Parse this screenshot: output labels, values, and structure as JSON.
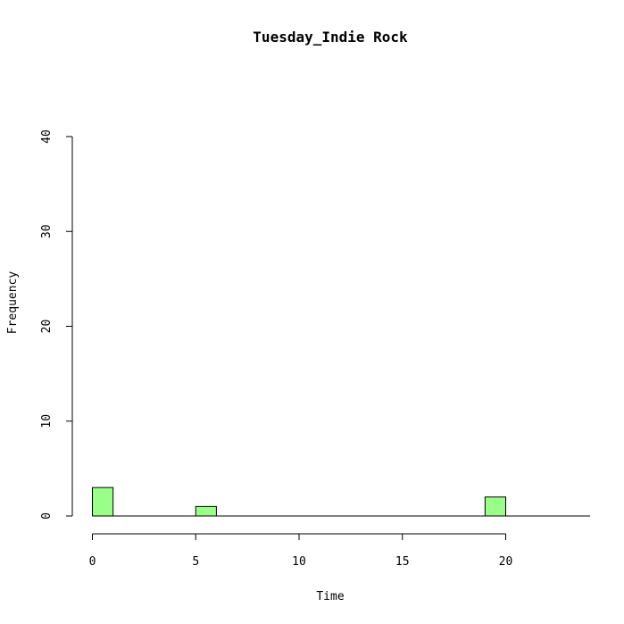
{
  "chart_data": {
    "type": "bar",
    "title": "Tuesday_Indie Rock",
    "xlabel": "Time",
    "ylabel": "Frequency",
    "bin_width": 1,
    "bins": [
      {
        "start": 0,
        "end": 1,
        "count": 3
      },
      {
        "start": 5,
        "end": 6,
        "count": 1
      },
      {
        "start": 19,
        "end": 20,
        "count": 2
      }
    ],
    "xlim": [
      -0.5,
      24
    ],
    "ylim": [
      0,
      40
    ],
    "x_axis_ticks": [
      0,
      5,
      10,
      15,
      20
    ],
    "y_axis_ticks": [
      0,
      10,
      20,
      30,
      40
    ],
    "bar_color": "#99ff88",
    "grid": false,
    "legend": "none"
  }
}
